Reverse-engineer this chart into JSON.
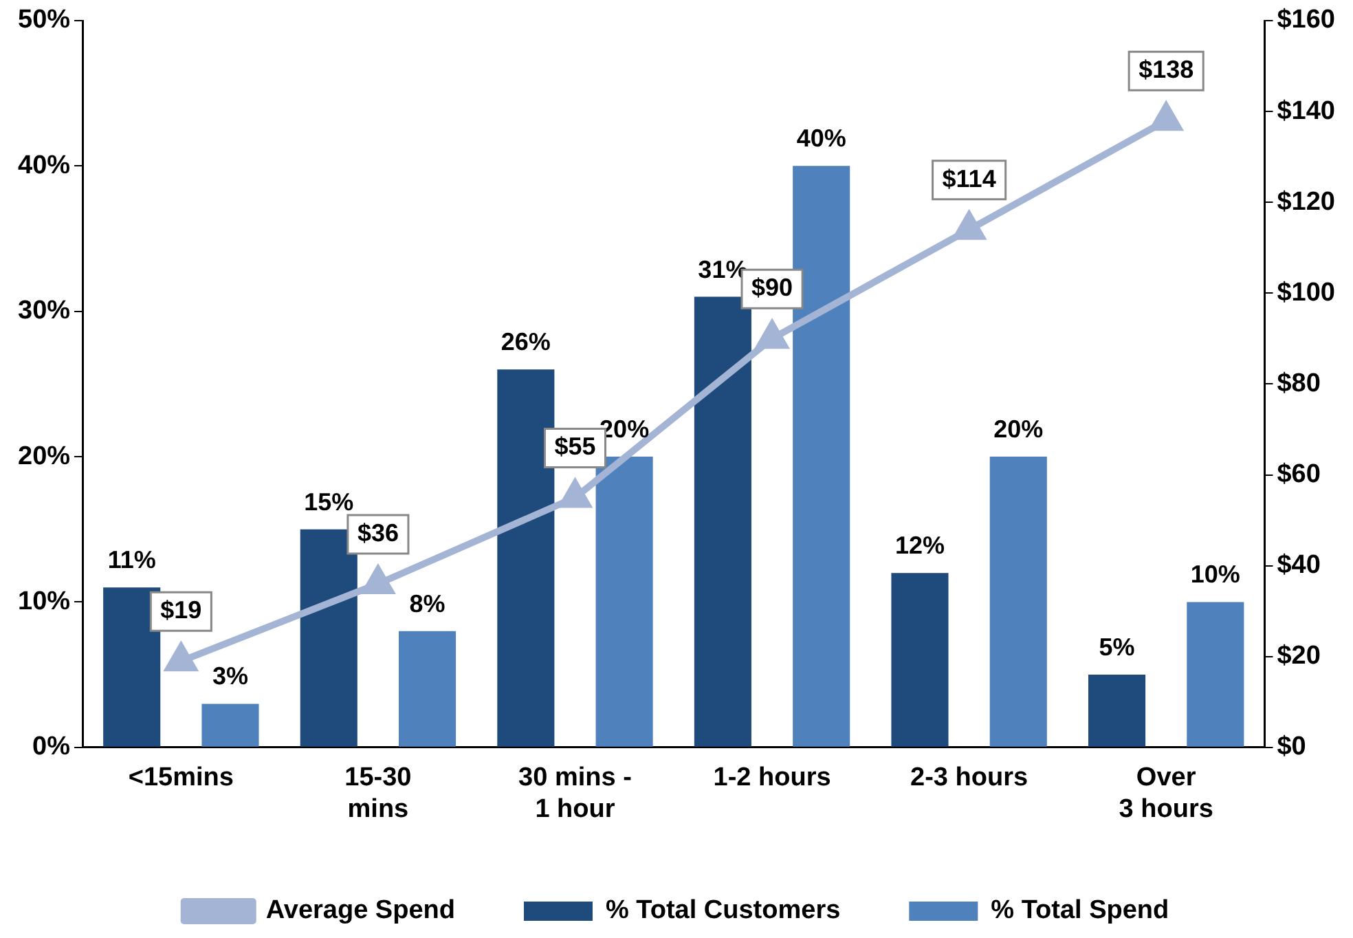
{
  "chart_data": {
    "type": "bar",
    "categories": [
      "<15mins",
      "15-30\nmins",
      "30 mins -\n1 hour",
      "1-2 hours",
      "2-3 hours",
      "Over\n3 hours"
    ],
    "series": [
      {
        "name": "% Total Customers",
        "color": "#1f4a7c",
        "values": [
          11,
          15,
          26,
          31,
          12,
          5
        ],
        "value_labels": [
          "11%",
          "15%",
          "26%",
          "31%",
          "12%",
          "5%"
        ]
      },
      {
        "name": "% Total Spend",
        "color": "#4f81bd",
        "values": [
          3,
          8,
          20,
          40,
          20,
          10
        ],
        "value_labels": [
          "3%",
          "8%",
          "20%",
          "40%",
          "20%",
          "10%"
        ]
      },
      {
        "name": "Average Spend",
        "type": "line",
        "axis": "y2",
        "color": "#a3b4d5",
        "marker": "triangle",
        "values": [
          19,
          36,
          55,
          90,
          114,
          138
        ],
        "value_labels": [
          "$19",
          "$36",
          "$55",
          "$90",
          "$114",
          "$138"
        ]
      }
    ],
    "ylim": [
      0,
      50
    ],
    "yticks": [
      {
        "value": 0,
        "label": "0%"
      },
      {
        "value": 10,
        "label": "10%"
      },
      {
        "value": 20,
        "label": "20%"
      },
      {
        "value": 30,
        "label": "30%"
      },
      {
        "value": 40,
        "label": "40%"
      },
      {
        "value": 50,
        "label": "50%"
      }
    ],
    "y2lim": [
      0,
      160
    ],
    "y2ticks": [
      {
        "value": 0,
        "label": "$0"
      },
      {
        "value": 20,
        "label": "$20"
      },
      {
        "value": 40,
        "label": "$40"
      },
      {
        "value": 60,
        "label": "$60"
      },
      {
        "value": 80,
        "label": "$80"
      },
      {
        "value": 100,
        "label": "$100"
      },
      {
        "value": 120,
        "label": "$120"
      },
      {
        "value": 140,
        "label": "$140"
      },
      {
        "value": 160,
        "label": "$160"
      }
    ],
    "grid": false,
    "legend": "bottom"
  }
}
